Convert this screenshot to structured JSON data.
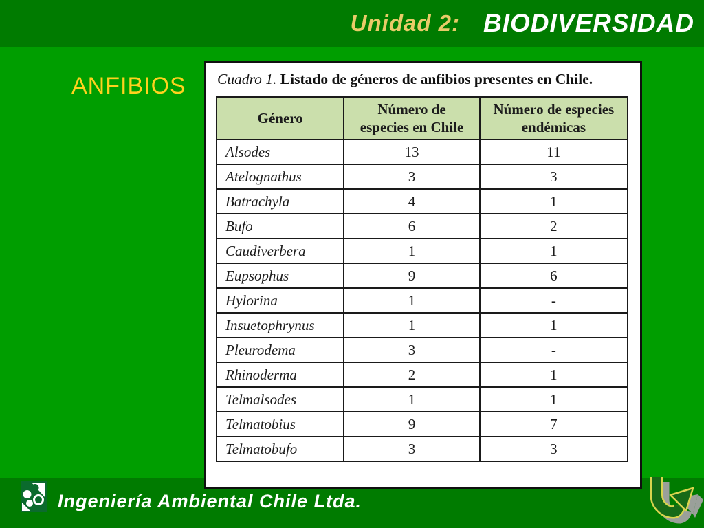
{
  "header": {
    "unit_label": "Unidad 2:",
    "title": "BIODIVERSIDAD"
  },
  "section_label": "ANFIBIOS",
  "footer": {
    "company": "Ingeniería Ambiental Chile Ltda."
  },
  "chart_data": {
    "type": "table",
    "title_prefix": "Cuadro 1.",
    "title_text": "Listado de géneros de anfibios presentes en Chile.",
    "columns": [
      "Género",
      "Número de\nespecies en Chile",
      "Número de especies\nendémicas"
    ],
    "rows": [
      [
        "Alsodes",
        "13",
        "11"
      ],
      [
        "Atelognathus",
        "3",
        "3"
      ],
      [
        "Batrachyla",
        "4",
        "1"
      ],
      [
        "Bufo",
        "6",
        "2"
      ],
      [
        "Caudiverbera",
        "1",
        "1"
      ],
      [
        "Eupsophus",
        "9",
        "6"
      ],
      [
        "Hylorina",
        "1",
        "-"
      ],
      [
        "Insuetophrynus",
        "1",
        "1"
      ],
      [
        "Pleurodema",
        "3",
        "-"
      ],
      [
        "Rhinoderma",
        "2",
        "1"
      ],
      [
        "Telmalsodes",
        "1",
        "1"
      ],
      [
        "Telmatobius",
        "9",
        "7"
      ],
      [
        "Telmatobufo",
        "3",
        "3"
      ]
    ]
  },
  "icons": {
    "bottom_left": "company-logo-icon",
    "bottom_right": "u-turn-arrow-icon"
  },
  "colors": {
    "slide_bg": "#009E00",
    "band_green": "#007B00",
    "header_cell_green": "#CBDFAC",
    "unit_label_gold": "#E8CB68",
    "anfibios_yellow": "#FFD21E",
    "arrow_outline_yellow": "#D9D44E",
    "arrow_green": "#176A17",
    "arrow_shadow_gray": "#A3A3A3"
  }
}
